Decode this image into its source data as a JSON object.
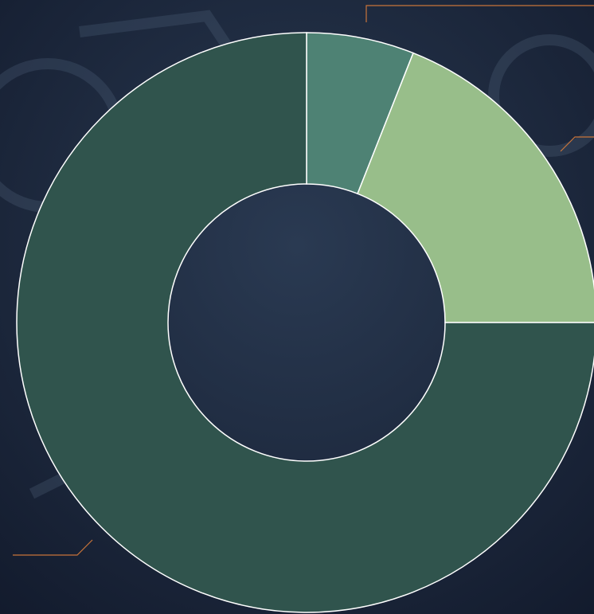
{
  "chart_data": {
    "type": "pie",
    "values": [
      6,
      19,
      75
    ],
    "colors": [
      "#4e8274",
      "#98be8a",
      "#30544d"
    ]
  }
}
